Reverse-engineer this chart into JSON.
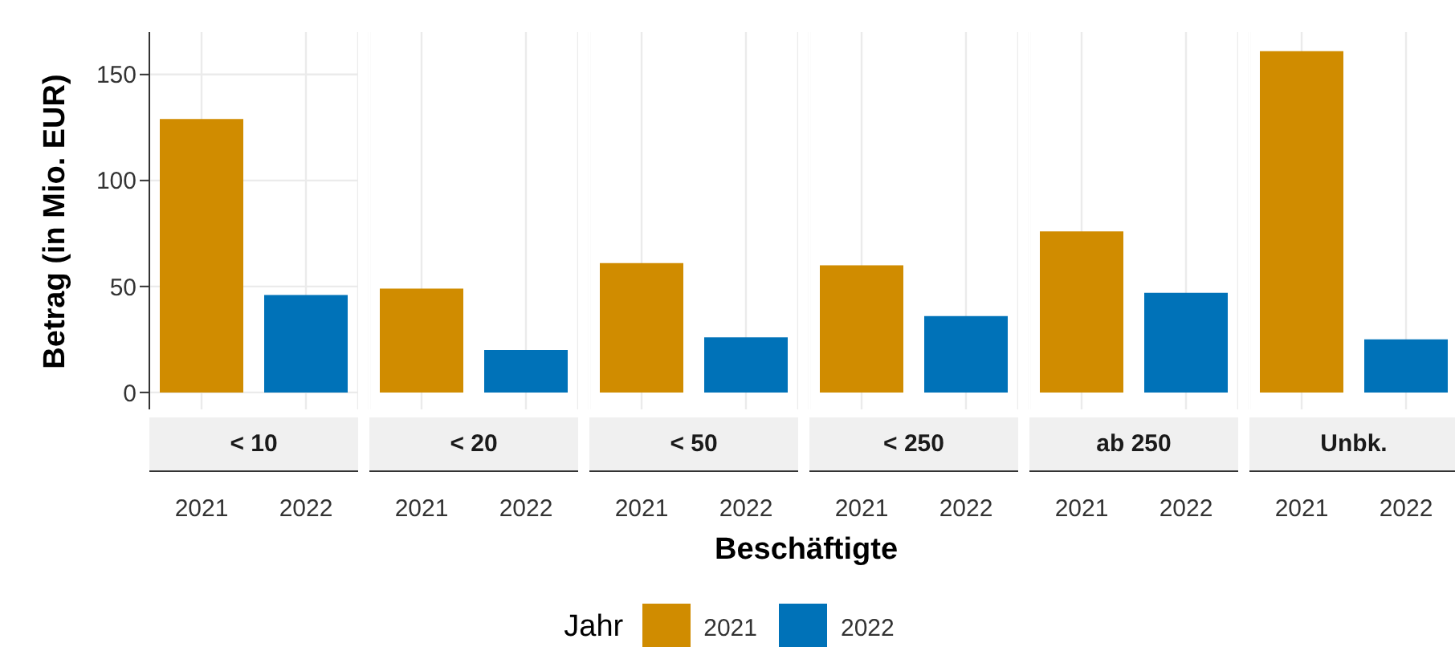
{
  "chart_data": [
    {
      "type": "bar",
      "title": "< 10",
      "categories": [
        "2021",
        "2022"
      ],
      "ylabel": "Betrag (in Mio. EUR)",
      "legend_title": "Jahr",
      "legend": "bottom",
      "stacked": true,
      "grid": true,
      "ylim": [
        -8,
        170
      ],
      "yticks": [
        0,
        50,
        100,
        150
      ],
      "series": [
        {
          "name": "2021",
          "color": "#d08c00",
          "values": [
            129,
            null
          ]
        },
        {
          "name": "2022",
          "color": "#0072b8",
          "values": [
            null,
            46
          ]
        }
      ]
    },
    {
      "type": "bar",
      "title": "< 20",
      "categories": [
        "2021",
        "2022"
      ],
      "stacked": true,
      "grid": true,
      "ylim": [
        -8,
        170
      ],
      "tick_labels": "x",
      "series": [
        {
          "name": "2021",
          "color": "#d08c00",
          "values": [
            49,
            null
          ]
        },
        {
          "name": "2022",
          "color": "#0072b8",
          "values": [
            null,
            20
          ]
        }
      ]
    },
    {
      "type": "bar",
      "title": "< 50",
      "xlabel": "Beschäftigte",
      "categories": [
        "2021",
        "2022"
      ],
      "stacked": true,
      "grid": true,
      "ylim": [
        -8,
        170
      ],
      "tick_labels": "x",
      "series": [
        {
          "name": "2021",
          "color": "#d08c00",
          "values": [
            61,
            null
          ]
        },
        {
          "name": "2022",
          "color": "#0072b8",
          "values": [
            null,
            26
          ]
        }
      ]
    },
    {
      "type": "bar",
      "title": "< 250",
      "categories": [
        "2021",
        "2022"
      ],
      "stacked": true,
      "grid": true,
      "ylim": [
        -8,
        170
      ],
      "tick_labels": "x",
      "series": [
        {
          "name": "2021",
          "color": "#d08c00",
          "values": [
            60,
            null
          ]
        },
        {
          "name": "2022",
          "color": "#0072b8",
          "values": [
            null,
            36
          ]
        }
      ]
    },
    {
      "type": "bar",
      "title": "ab 250",
      "categories": [
        "2021",
        "2022"
      ],
      "stacked": true,
      "grid": true,
      "ylim": [
        -8,
        170
      ],
      "tick_labels": "x",
      "series": [
        {
          "name": "2021",
          "color": "#d08c00",
          "values": [
            76,
            null
          ]
        },
        {
          "name": "2022",
          "color": "#0072b8",
          "values": [
            null,
            47
          ]
        }
      ]
    },
    {
      "type": "bar",
      "title": "Unbk.",
      "categories": [
        "2021",
        "2022"
      ],
      "stacked": true,
      "grid": true,
      "ylim": [
        -8,
        170
      ],
      "tick_labels": "x",
      "series": [
        {
          "name": "2021",
          "color": "#d08c00",
          "values": [
            161,
            null
          ]
        },
        {
          "name": "2022",
          "color": "#0072b8",
          "values": [
            null,
            25
          ]
        }
      ]
    }
  ]
}
